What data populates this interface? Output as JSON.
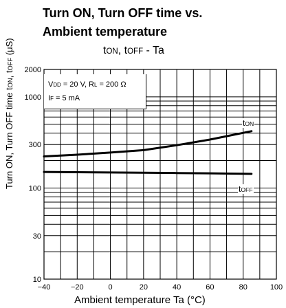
{
  "title_line1": "Turn ON, Turn OFF time vs.",
  "title_line2": "Ambient temperature",
  "subtitle": {
    "t_on": "t",
    "on_sub": "ON",
    "sep": ", ",
    "t_off": "t",
    "off_sub": "OFF",
    "rest": " - Ta"
  },
  "conditions": {
    "line1": {
      "v": "V",
      "v_sub": "DD",
      "v_rest": " = 20 V, R",
      "r_sub": "L",
      "r_rest": " = 200 Ω"
    },
    "line2": {
      "i": "I",
      "i_sub": "F",
      "i_rest": " = 5 mA"
    }
  },
  "ylabel": {
    "pre": "Turn ON, Turn OFF time t",
    "on_sub": "ON",
    "mid": ", t",
    "off_sub": "OFF",
    "post": " (μS)"
  },
  "xlabel": "Ambient temperature Ta (°C)",
  "curve_labels": {
    "ton": {
      "t": "t",
      "sub": "ON"
    },
    "toff": {
      "t": "t",
      "sub": "OFF"
    }
  },
  "chart_data": {
    "type": "line",
    "x_scale": "linear",
    "y_scale": "log",
    "xlim": [
      -40,
      100
    ],
    "ylim": [
      10,
      2000
    ],
    "x_ticks": [
      -40,
      -20,
      0,
      20,
      40,
      60,
      80,
      100
    ],
    "y_ticks": [
      10,
      30,
      100,
      300,
      1000,
      2000
    ],
    "grid": true,
    "series": [
      {
        "name": "tON",
        "x": [
          -40,
          -20,
          0,
          20,
          40,
          60,
          85
        ],
        "y": [
          222,
          232,
          245,
          260,
          295,
          340,
          420
        ]
      },
      {
        "name": "tOFF",
        "x": [
          -40,
          -20,
          0,
          20,
          40,
          60,
          85
        ],
        "y": [
          150,
          149,
          148,
          147,
          146,
          145,
          143
        ]
      }
    ]
  }
}
